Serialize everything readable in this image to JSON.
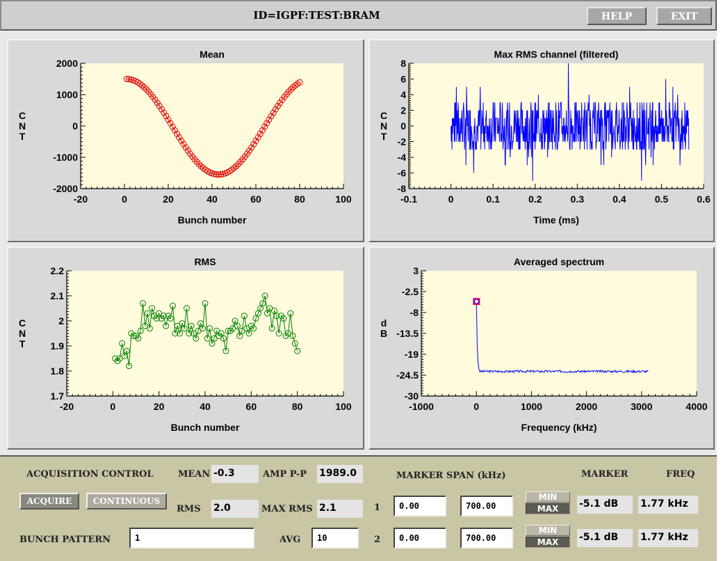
{
  "window": {
    "title": "ID=IGPF:TEST:BRAM",
    "help_label": "HELP",
    "exit_label": "EXIT"
  },
  "plots": {
    "mean": {
      "title": "Mean",
      "xlabel": "Bunch number",
      "ylabel": "CNT",
      "xticks": [
        "-20",
        "0",
        "20",
        "40",
        "60",
        "80",
        "100"
      ],
      "yticks": [
        "2000",
        "1000",
        "0",
        "-1000",
        "-2000"
      ]
    },
    "maxrms": {
      "title": "Max RMS channel (filtered)",
      "xlabel": "Time (ms)",
      "ylabel": "CNT",
      "xticks": [
        "-0.1",
        "0",
        "0.1",
        "0.2",
        "0.3",
        "0.4",
        "0.5",
        "0.6"
      ],
      "yticks": [
        "8",
        "6",
        "4",
        "2",
        "0",
        "-2",
        "-4",
        "-6",
        "-8"
      ]
    },
    "rms": {
      "title": "RMS",
      "xlabel": "Bunch number",
      "ylabel": "CNT",
      "xticks": [
        "-20",
        "0",
        "20",
        "40",
        "60",
        "80",
        "100"
      ],
      "yticks": [
        "2.2",
        "2.1",
        "2",
        "1.9",
        "1.8",
        "1.7"
      ]
    },
    "spectrum": {
      "title": "Averaged spectrum",
      "xlabel": "Frequency (kHz)",
      "ylabel": "dB",
      "xticks": [
        "-1000",
        "0",
        "1000",
        "2000",
        "3000",
        "4000"
      ],
      "yticks": [
        "3",
        "-2.5",
        "-8",
        "-13.5",
        "-19",
        "-24.5",
        "-30"
      ]
    }
  },
  "controls": {
    "acq_title": "ACQUISITION CONTROL",
    "acquire_label": "ACQUIRE",
    "continuous_label": "CONTINUOUS",
    "bunch_pattern_label": "BUNCH PATTERN",
    "bunch_pattern_value": "1",
    "mean_label": "MEAN",
    "mean_value": "-0.3",
    "rms_label": "RMS",
    "rms_value": "2.0",
    "amp_label": "AMP P-P",
    "amp_value": "1989.0",
    "maxrms_label": "MAX RMS",
    "maxrms_value": "2.1",
    "avg_label": "AVG",
    "avg_value": "10",
    "marker_span_label": "MARKER SPAN (kHz)",
    "marker_label": "MARKER",
    "freq_label": "FREQ",
    "rows": [
      {
        "index": "1",
        "span_lo": "0.00",
        "span_hi": "700.00",
        "min_label": "MIN",
        "max_label": "MAX",
        "marker": "-5.1 dB",
        "freq": "1.77 kHz"
      },
      {
        "index": "2",
        "span_lo": "0.00",
        "span_hi": "700.00",
        "min_label": "MIN",
        "max_label": "MAX",
        "marker": "-5.1 dB",
        "freq": "1.77 kHz"
      }
    ]
  },
  "chart_data": [
    {
      "type": "scatter",
      "title": "Mean",
      "xlabel": "Bunch number",
      "ylabel": "CNT",
      "xlim": [
        -20,
        100
      ],
      "ylim": [
        -2000,
        2000
      ],
      "color": "#e00000",
      "series": [
        {
          "x_start": 1,
          "x_end": 80,
          "count": 80,
          "shape": "cosine",
          "max": 1500,
          "min": -1550,
          "min_at": 43
        }
      ]
    },
    {
      "type": "line",
      "title": "Max RMS channel (filtered)",
      "xlabel": "Time (ms)",
      "ylabel": "CNT",
      "xlim": [
        -0.1,
        0.6
      ],
      "ylim": [
        -8,
        8
      ],
      "color": "#0000ff",
      "series": [
        {
          "x_start": 0,
          "x_end": 0.565,
          "typical_range": [
            -3,
            3
          ],
          "extremes": [
            -7,
            8
          ]
        }
      ]
    },
    {
      "type": "line",
      "title": "RMS",
      "xlabel": "Bunch number",
      "ylabel": "CNT",
      "xlim": [
        -20,
        100
      ],
      "ylim": [
        1.7,
        2.2
      ],
      "color": "#008000",
      "series": [
        {
          "x": [
            1,
            2,
            3,
            4,
            5,
            6,
            7,
            8,
            9,
            10,
            11,
            12,
            13,
            14,
            15,
            16,
            17,
            18,
            19,
            20,
            21,
            22,
            23,
            24,
            25,
            26,
            27,
            28,
            29,
            30,
            31,
            32,
            33,
            34,
            35,
            36,
            37,
            38,
            39,
            40,
            41,
            42,
            43,
            44,
            45,
            46,
            47,
            48,
            49,
            50,
            51,
            52,
            53,
            54,
            55,
            56,
            57,
            58,
            59,
            60,
            61,
            62,
            63,
            64,
            65,
            66,
            67,
            68,
            69,
            70,
            71,
            72,
            73,
            74,
            75,
            76,
            77,
            78,
            79,
            80
          ],
          "values": [
            1.85,
            1.84,
            1.85,
            1.91,
            1.86,
            1.88,
            1.82,
            1.95,
            1.94,
            1.94,
            1.93,
            1.96,
            2.07,
            1.98,
            2.03,
            1.97,
            2.05,
            2.02,
            2.01,
            2.03,
            2.01,
            2.02,
            1.98,
            2.02,
            2.01,
            2.06,
            1.95,
            1.98,
            1.95,
            1.99,
            1.97,
            2.05,
            1.95,
            1.98,
            1.95,
            1.93,
            1.96,
            1.99,
            1.97,
            2.07,
            1.93,
            1.97,
            1.91,
            1.93,
            1.96,
            1.94,
            1.95,
            1.93,
            1.88,
            1.96,
            1.96,
            1.97,
            2.0,
            1.98,
            1.94,
            1.96,
            2.02,
            1.97,
            1.95,
            1.98,
            1.97,
            2.01,
            2.03,
            2.05,
            2.07,
            2.1,
            2.03,
            2.05,
            1.97,
            2.04,
            2.02,
            1.95,
            2.02,
            2.01,
            1.94,
            1.95,
            2.03,
            1.94,
            1.91,
            1.88
          ]
        }
      ]
    },
    {
      "type": "line",
      "title": "Averaged spectrum",
      "xlabel": "Frequency (kHz)",
      "ylabel": "dB",
      "xlim": [
        -1000,
        4000
      ],
      "ylim": [
        -30,
        3
      ],
      "color": "#0000ff",
      "marker_color": "#e0006a",
      "series": [
        {
          "peak_x": 1.77,
          "peak_y": -5.1,
          "floor": -23.5,
          "x_end": 3125
        }
      ]
    }
  ]
}
